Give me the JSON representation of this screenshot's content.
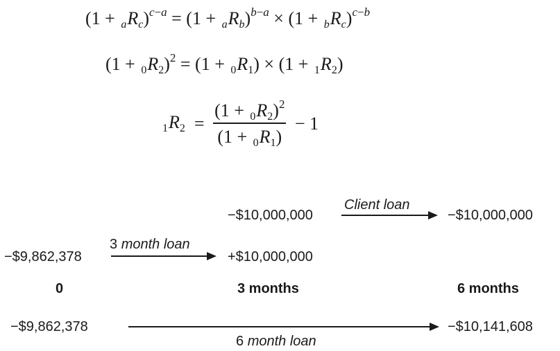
{
  "equations": {
    "eq1": "(1 + aRc)^(c−a) = (1 + aRb)^(b−a) × (1 + bRc)^(c−b)",
    "eq2": "(1 + 0R2)^2 = (1 + 0R1) × (1 + 1R2)",
    "eq3": "1R2 = (1 + 0R2)^2 / (1 + 0R1) − 1"
  },
  "timeline": {
    "top_row": {
      "left_amount": "−$10,000,000",
      "arrow_label": "Client loan",
      "right_amount": "−$10,000,000"
    },
    "middle_row": {
      "left_amount": "−$9,862,378",
      "arrow_label_number": "3",
      "arrow_label_text": "month loan",
      "right_amount": "+$10,000,000"
    },
    "time_labels": {
      "t0": "0",
      "t3": "3 months",
      "t6": "6 months"
    },
    "bottom_row": {
      "left_amount": "−$9,862,378",
      "arrow_label_number": "6",
      "arrow_label_text": "month loan",
      "right_amount": "−$10,141,608"
    }
  }
}
